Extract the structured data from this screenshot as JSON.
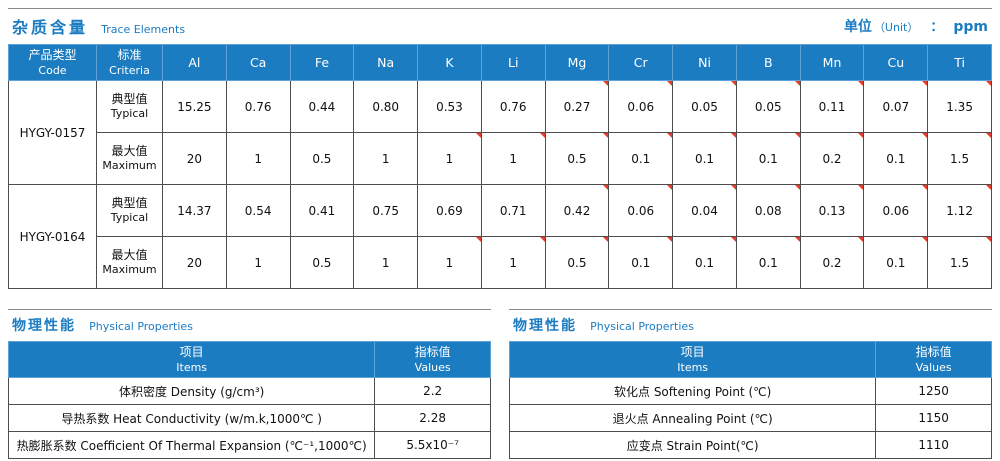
{
  "colors": {
    "accent": "#1c7cc2",
    "grid_line": "#4d4d4d",
    "header_grid_line": "#5fa3d6",
    "comment_marker": "#e8392b",
    "header_text": "#ffffff"
  },
  "trace": {
    "title_cn": "杂质含量",
    "title_en": "Trace Elements",
    "unit_cn": "单位",
    "unit_en": "（Unit）",
    "unit_colon": "：",
    "unit_value": "ppm",
    "code_header_cn": "产品类型",
    "code_header_en": "Code",
    "criteria_header_cn": "标准",
    "criteria_header_en": "Criteria",
    "elements": [
      "Al",
      "Ca",
      "Fe",
      "Na",
      "K",
      "Li",
      "Mg",
      "Cr",
      "Ni",
      "B",
      "Mn",
      "Cu",
      "Ti"
    ],
    "groups": [
      {
        "code": "HYGY-0157",
        "rows": [
          {
            "criteria_cn": "典型值",
            "criteria_en": "Typical",
            "values": [
              "15.25",
              "0.76",
              "0.44",
              "0.80",
              "0.53",
              "0.76",
              "0.27",
              "0.06",
              "0.05",
              "0.05",
              "0.11",
              "0.07",
              "1.35"
            ],
            "markers": [
              6,
              7,
              8,
              9,
              10,
              11,
              12
            ]
          },
          {
            "criteria_cn": "最大值",
            "criteria_en": "Maximum",
            "values": [
              "20",
              "1",
              "0.5",
              "1",
              "1",
              "1",
              "0.5",
              "0.1",
              "0.1",
              "0.1",
              "0.2",
              "0.1",
              "1.5"
            ],
            "markers": [
              4,
              5,
              6,
              7,
              8,
              9,
              10,
              11,
              12
            ]
          }
        ]
      },
      {
        "code": "HYGY-0164",
        "rows": [
          {
            "criteria_cn": "典型值",
            "criteria_en": "Typical",
            "values": [
              "14.37",
              "0.54",
              "0.41",
              "0.75",
              "0.69",
              "0.71",
              "0.42",
              "0.06",
              "0.04",
              "0.08",
              "0.13",
              "0.06",
              "1.12"
            ],
            "markers": [
              6,
              7,
              8,
              9,
              10,
              11,
              12
            ]
          },
          {
            "criteria_cn": "最大值",
            "criteria_en": "Maximum",
            "values": [
              "20",
              "1",
              "0.5",
              "1",
              "1",
              "1",
              "0.5",
              "0.1",
              "0.1",
              "0.1",
              "0.2",
              "0.1",
              "1.5"
            ],
            "markers": [
              4,
              5,
              6,
              7,
              8,
              9,
              10,
              11,
              12
            ]
          }
        ]
      }
    ]
  },
  "physical_left": {
    "title_cn": "物理性能",
    "title_en": "Physical Properties",
    "item_header_cn": "项目",
    "item_header_en": "Items",
    "value_header_cn": "指标值",
    "value_header_en": "Values",
    "rows": [
      {
        "item": "体积密度 Density (g/cm³)",
        "value": "2.2"
      },
      {
        "item": "导热系数 Heat Conductivity (w/m.k,1000℃ )",
        "value": "2.28"
      },
      {
        "item": "热膨胀系数 Coefficient Of Thermal Expansion (℃⁻¹,1000℃)",
        "value": "5.5x10⁻⁷"
      }
    ]
  },
  "physical_right": {
    "title_cn": "物理性能",
    "title_en": "Physical Properties",
    "item_header_cn": "项目",
    "item_header_en": "Items",
    "value_header_cn": "指标值",
    "value_header_en": "Values",
    "rows": [
      {
        "item": "软化点 Softening Point (℃)",
        "value": "1250"
      },
      {
        "item": "退火点 Annealing Point (℃)",
        "value": "1150"
      },
      {
        "item": "应变点 Strain Point(℃)",
        "value": "1110"
      }
    ]
  }
}
